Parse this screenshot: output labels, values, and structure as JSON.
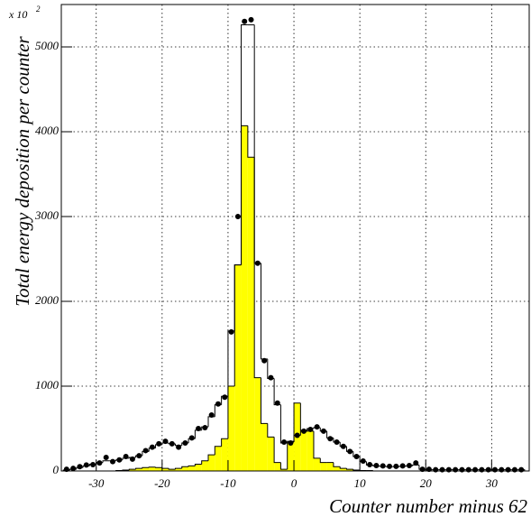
{
  "chart_data": {
    "type": "histogram",
    "y_label": "Total energy deposition per counter",
    "x_label": "Counter number minus 62",
    "y_multiplier": {
      "base": "x 10",
      "exponent": "2"
    },
    "bins": [
      -35,
      -34,
      -33,
      -32,
      -31,
      -30,
      -29,
      -28,
      -27,
      -26,
      -25,
      -24,
      -23,
      -22,
      -21,
      -20,
      -19,
      -18,
      -17,
      -16,
      -15,
      -14,
      -13,
      -12,
      -11,
      -10,
      -9,
      -8,
      -7,
      -6,
      -5,
      -4,
      -3,
      -2,
      -1,
      0,
      1,
      2,
      3,
      4,
      5,
      6,
      7,
      8,
      9,
      10,
      11,
      12,
      13,
      14,
      15,
      16,
      17,
      18,
      19,
      20,
      21,
      22,
      23,
      24,
      25,
      26,
      27,
      28,
      29,
      30,
      31,
      32,
      33,
      34,
      35
    ],
    "series": [
      {
        "style": "filled-step",
        "color": "#ffff00",
        "values": [
          0,
          0,
          0,
          0,
          0,
          0,
          0,
          0,
          5,
          10,
          20,
          30,
          40,
          45,
          40,
          30,
          20,
          30,
          50,
          60,
          80,
          120,
          190,
          290,
          380,
          1000,
          2430,
          4070,
          3700,
          1100,
          560,
          400,
          100,
          20,
          350,
          800,
          480,
          470,
          150,
          100,
          100,
          50,
          30,
          20,
          10,
          5,
          5,
          0,
          0,
          0,
          0,
          0,
          0,
          0,
          0,
          0,
          0,
          0,
          0,
          0,
          0,
          0,
          0,
          0,
          0,
          0,
          0,
          0,
          0,
          0
        ]
      },
      {
        "style": "step",
        "color": "#000000",
        "values": [
          10,
          20,
          40,
          60,
          80,
          100,
          120,
          120,
          130,
          150,
          160,
          180,
          230,
          270,
          310,
          330,
          320,
          300,
          330,
          380,
          480,
          520,
          640,
          780,
          880,
          1650,
          2430,
          5260,
          5260,
          2450,
          1320,
          1090,
          780,
          330,
          340,
          420,
          470,
          500,
          510,
          470,
          390,
          340,
          290,
          230,
          170,
          110,
          70,
          60,
          55,
          50,
          50,
          55,
          60,
          70,
          20,
          15,
          15,
          15,
          15,
          15,
          15,
          15,
          15,
          15,
          15,
          15,
          15,
          15,
          15,
          15
        ]
      },
      {
        "style": "points",
        "color": "#000000",
        "values": [
          20,
          30,
          50,
          70,
          75,
          95,
          160,
          110,
          130,
          170,
          140,
          180,
          240,
          280,
          320,
          350,
          320,
          280,
          330,
          390,
          500,
          510,
          660,
          790,
          870,
          1640,
          3000,
          5300,
          5320,
          2450,
          1300,
          1100,
          800,
          340,
          330,
          420,
          470,
          490,
          520,
          470,
          380,
          340,
          290,
          230,
          170,
          117,
          75,
          64,
          60,
          55,
          55,
          60,
          64,
          95,
          20,
          20,
          15,
          15,
          15,
          15,
          15,
          15,
          15,
          15,
          15,
          15,
          15,
          15,
          15,
          15
        ]
      }
    ],
    "xlim": [
      -35.3,
      35.7
    ],
    "xticks": [
      -30,
      -20,
      -10,
      0,
      10,
      20,
      30
    ],
    "ylim": [
      0,
      5500
    ],
    "yticks": [
      0,
      1000,
      2000,
      3000,
      4000,
      5000
    ],
    "grid": true
  }
}
